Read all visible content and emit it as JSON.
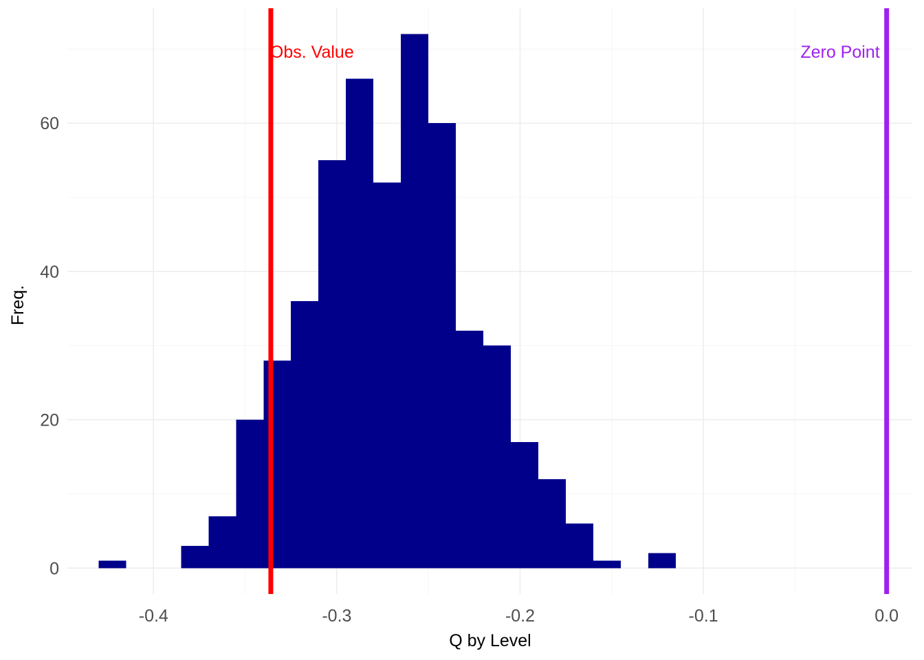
{
  "chart_data": {
    "type": "bar",
    "subtype": "histogram",
    "xlabel": "Q by Level",
    "ylabel": "Freq.",
    "xlim": [
      -0.447,
      0.014
    ],
    "ylim": [
      -3.5,
      75.5
    ],
    "x_ticks": [
      {
        "value": -0.4,
        "label": "-0.4"
      },
      {
        "value": -0.3,
        "label": "-0.3"
      },
      {
        "value": -0.2,
        "label": "-0.2"
      },
      {
        "value": -0.1,
        "label": "-0.1"
      },
      {
        "value": 0.0,
        "label": "0.0"
      }
    ],
    "y_ticks": [
      {
        "value": 0,
        "label": "0"
      },
      {
        "value": 20,
        "label": "20"
      },
      {
        "value": 40,
        "label": "40"
      },
      {
        "value": 60,
        "label": "60"
      }
    ],
    "bin_width": 0.015,
    "bins": [
      {
        "x0": -0.43,
        "x1": -0.415,
        "count": 1
      },
      {
        "x0": -0.415,
        "x1": -0.4,
        "count": 0
      },
      {
        "x0": -0.4,
        "x1": -0.385,
        "count": 0
      },
      {
        "x0": -0.385,
        "x1": -0.37,
        "count": 3
      },
      {
        "x0": -0.37,
        "x1": -0.355,
        "count": 7
      },
      {
        "x0": -0.355,
        "x1": -0.34,
        "count": 20
      },
      {
        "x0": -0.34,
        "x1": -0.325,
        "count": 28
      },
      {
        "x0": -0.325,
        "x1": -0.31,
        "count": 36
      },
      {
        "x0": -0.31,
        "x1": -0.295,
        "count": 55
      },
      {
        "x0": -0.295,
        "x1": -0.28,
        "count": 66
      },
      {
        "x0": -0.28,
        "x1": -0.265,
        "count": 52
      },
      {
        "x0": -0.265,
        "x1": -0.25,
        "count": 72
      },
      {
        "x0": -0.25,
        "x1": -0.235,
        "count": 60
      },
      {
        "x0": -0.235,
        "x1": -0.22,
        "count": 32
      },
      {
        "x0": -0.22,
        "x1": -0.205,
        "count": 30
      },
      {
        "x0": -0.205,
        "x1": -0.19,
        "count": 17
      },
      {
        "x0": -0.19,
        "x1": -0.175,
        "count": 12
      },
      {
        "x0": -0.175,
        "x1": -0.16,
        "count": 6
      },
      {
        "x0": -0.16,
        "x1": -0.145,
        "count": 1
      },
      {
        "x0": -0.145,
        "x1": -0.13,
        "count": 0
      },
      {
        "x0": -0.13,
        "x1": -0.115,
        "count": 2
      }
    ],
    "bar_color": "#00008B",
    "reference_lines": [
      {
        "x": -0.336,
        "label": "Obs. Value",
        "color": "#FF0000",
        "label_align": "left"
      },
      {
        "x": 0.0,
        "label": "Zero Point",
        "color": "#A020F0",
        "label_align": "right"
      }
    ],
    "grid": true,
    "legend": "none"
  }
}
